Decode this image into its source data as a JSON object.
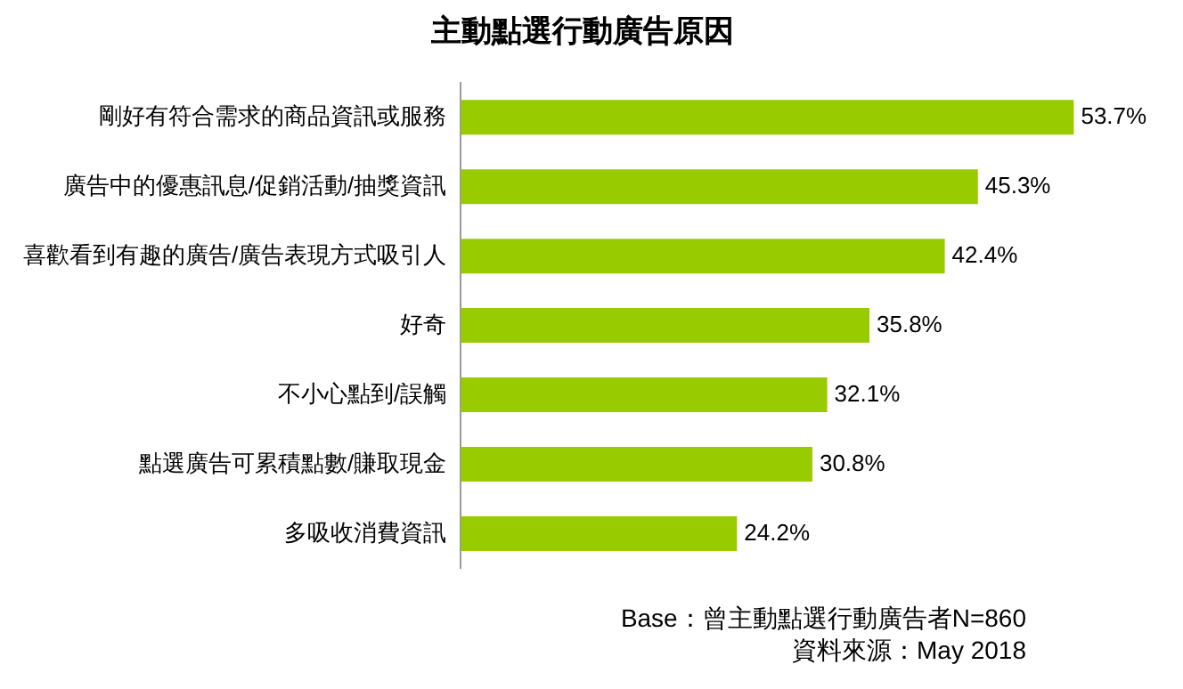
{
  "chart_data": {
    "type": "bar",
    "orientation": "horizontal",
    "title": "主動點選行動廣告原因",
    "categories": [
      "剛好有符合需求的商品資訊或服務",
      "廣告中的優惠訊息/促銷活動/抽獎資訊",
      "喜歡看到有趣的廣告/廣告表現方式吸引人",
      "好奇",
      "不小心點到/誤觸",
      "點選廣告可累積點數/賺取現金",
      "多吸收消費資訊"
    ],
    "values": [
      53.7,
      45.3,
      42.4,
      35.8,
      32.1,
      30.8,
      24.2
    ],
    "value_labels": [
      "53.7%",
      "45.3%",
      "42.4%",
      "35.8%",
      "32.1%",
      "30.8%",
      "24.2%"
    ],
    "color": "#99cc00",
    "tick_labels": "y",
    "annotations": [
      "Base：曾主動點選行動廣告者N=860",
      "資料來源：May 2018"
    ]
  }
}
